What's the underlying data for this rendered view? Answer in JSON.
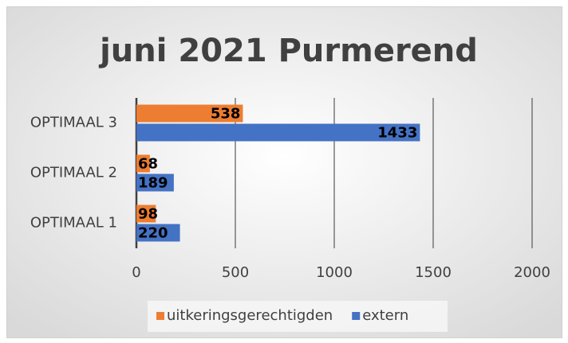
{
  "chart_data": {
    "type": "bar",
    "orientation": "horizontal",
    "title": "juni 2021 Purmerend",
    "categories": [
      "OPTIMAAL 1",
      "OPTIMAAL 2",
      "OPTIMAAL 3"
    ],
    "series": [
      {
        "name": "uitkeringsgerechtigden",
        "color": "#ed7d31",
        "values": [
          98,
          68,
          538
        ]
      },
      {
        "name": "extern",
        "color": "#4472c4",
        "values": [
          220,
          189,
          1433
        ]
      }
    ],
    "xlim": [
      0,
      2000
    ],
    "xticks": [
      0,
      500,
      1000,
      1500,
      2000
    ],
    "grid": true,
    "legend": "bottom"
  }
}
